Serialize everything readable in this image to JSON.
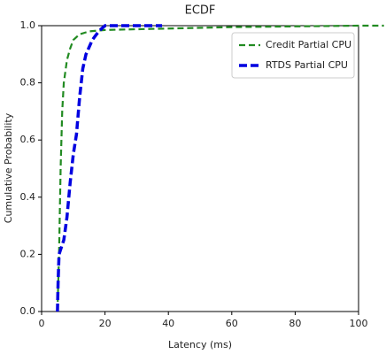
{
  "chart_data": {
    "type": "line",
    "title": "ECDF",
    "x_label": "Latency (ms)",
    "y_label": "Cumulative Probability",
    "xlim": [
      0,
      100
    ],
    "ylim": [
      0,
      1
    ],
    "xticks": [
      0,
      20,
      40,
      60,
      80,
      100
    ],
    "yticks": [
      {
        "value": 0,
        "label": "0.0"
      },
      0.2,
      0.4,
      0.6,
      0.8,
      {
        "value": 1,
        "label": "1.0"
      }
    ],
    "legend": "upper right",
    "series": [
      {
        "name": "Credit Partial CPU",
        "color": "#228b22",
        "dash": "7,4",
        "width": 2.2,
        "x": [
          5,
          5.5,
          6,
          6.5,
          7,
          8,
          9,
          10,
          12,
          15,
          20,
          40,
          60,
          100,
          108
        ],
        "values": [
          0,
          0.2,
          0.5,
          0.7,
          0.8,
          0.88,
          0.92,
          0.95,
          0.97,
          0.98,
          0.985,
          0.99,
          0.995,
          1,
          1
        ]
      },
      {
        "name": "RTDS Partial CPU",
        "color": "#0000e0",
        "dash": "9,4",
        "width": 3.5,
        "x": [
          5,
          5.2,
          5.5,
          7,
          8,
          9,
          10,
          11,
          12,
          13,
          14,
          16,
          18,
          20,
          38
        ],
        "values": [
          0,
          0.1,
          0.2,
          0.25,
          0.33,
          0.45,
          0.55,
          0.62,
          0.75,
          0.85,
          0.9,
          0.95,
          0.98,
          1,
          1
        ]
      }
    ]
  }
}
